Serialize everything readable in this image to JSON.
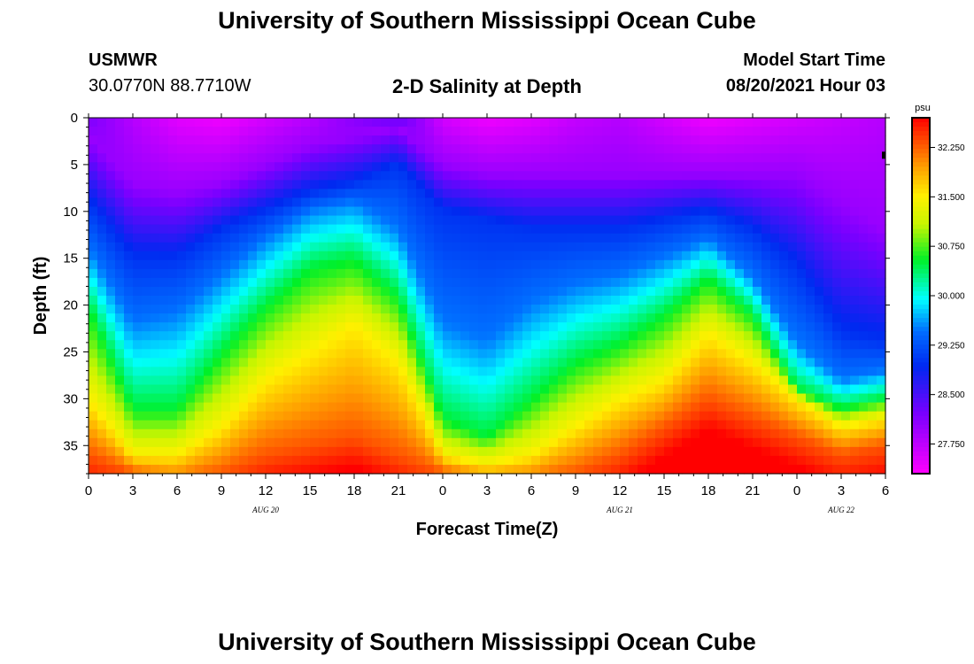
{
  "header": {
    "title_top": "University of Southern Mississippi Ocean Cube",
    "station": "USMWR",
    "coords": "30.0770N  88.7710W",
    "plot_title": "2-D Salinity at Depth",
    "model_start_label": "Model Start Time",
    "model_start_value": "08/20/2021 Hour 03",
    "title_bottom": "University of Southern Mississippi Ocean Cube"
  },
  "colors": {
    "background": "#ffffff",
    "colorbar_border": "#000000"
  },
  "chart_data": {
    "type": "heatmap",
    "title": "2-D Salinity at Depth",
    "xlabel": "Forecast Time(Z)",
    "ylabel": "Depth (ft)",
    "x_hours_range": [
      0,
      54
    ],
    "x_tick_labels": [
      "0",
      "3",
      "6",
      "9",
      "12",
      "15",
      "18",
      "21",
      "0",
      "3",
      "6",
      "9",
      "12",
      "15",
      "18",
      "21",
      "0",
      "3",
      "6"
    ],
    "date_labels": [
      {
        "label": "AUG  20",
        "hour": 12
      },
      {
        "label": "AUG  21",
        "hour": 36
      },
      {
        "label": "AUG  22",
        "hour": 51
      }
    ],
    "ylim": [
      0,
      38
    ],
    "y_ticks": [
      0,
      5,
      10,
      15,
      20,
      25,
      30,
      35
    ],
    "y_tick_labels": [
      "0",
      "5",
      "10",
      "15",
      "20",
      "25",
      "30",
      "35"
    ],
    "colorbar": {
      "unit": "psu",
      "range": [
        27.3,
        32.7
      ],
      "tick_values": [
        27.75,
        28.5,
        29.25,
        30.0,
        30.75,
        31.5,
        32.25
      ],
      "tick_labels": [
        "27.750",
        "28.500",
        "29.250",
        "30.000",
        "30.750",
        "31.500",
        "32.250"
      ]
    },
    "isohaline_depths_ft": {
      "hours": [
        0,
        3,
        6,
        9,
        12,
        15,
        18,
        21,
        24,
        27,
        30,
        33,
        36,
        39,
        42,
        45,
        48,
        51,
        54
      ],
      "s28_0": [
        2,
        7,
        8,
        7,
        5,
        3,
        2,
        1,
        5,
        6,
        6,
        6,
        6,
        6,
        6,
        6,
        6,
        9,
        12
      ],
      "s29_0": [
        9,
        15,
        15,
        12,
        10,
        8,
        7,
        5,
        10,
        11,
        12,
        12,
        12,
        11,
        10,
        12,
        16,
        23,
        24
      ],
      "s29_5": [
        14,
        22,
        21,
        17,
        13,
        10,
        9,
        12,
        22,
        24,
        20,
        18,
        17,
        15,
        13,
        17,
        24,
        28,
        27
      ],
      "s30_5": [
        20,
        31,
        31,
        25,
        20,
        16,
        15,
        19,
        32,
        34,
        30,
        26,
        24,
        21,
        17,
        21,
        29,
        31,
        30
      ],
      "s31_5": [
        30,
        36,
        36,
        33,
        28,
        25,
        22,
        26,
        36,
        37,
        36,
        33,
        30,
        28,
        23,
        26,
        30,
        33,
        32
      ],
      "s32_3": [
        36,
        38,
        39,
        38,
        36,
        35,
        34,
        36,
        38,
        39,
        39,
        38,
        36,
        33,
        30,
        32,
        34,
        36,
        35
      ]
    },
    "surface_minimum_psu": {
      "hours": [
        0,
        3,
        6,
        9,
        12,
        15,
        18,
        21,
        24,
        27,
        30,
        33,
        36,
        39,
        42,
        45,
        48,
        51,
        54
      ],
      "values": [
        28.2,
        27.8,
        27.5,
        27.4,
        27.6,
        27.8,
        28.1,
        28.4,
        27.6,
        27.4,
        27.5,
        27.7,
        27.8,
        27.6,
        27.4,
        27.5,
        27.6,
        27.7,
        27.8
      ]
    }
  }
}
